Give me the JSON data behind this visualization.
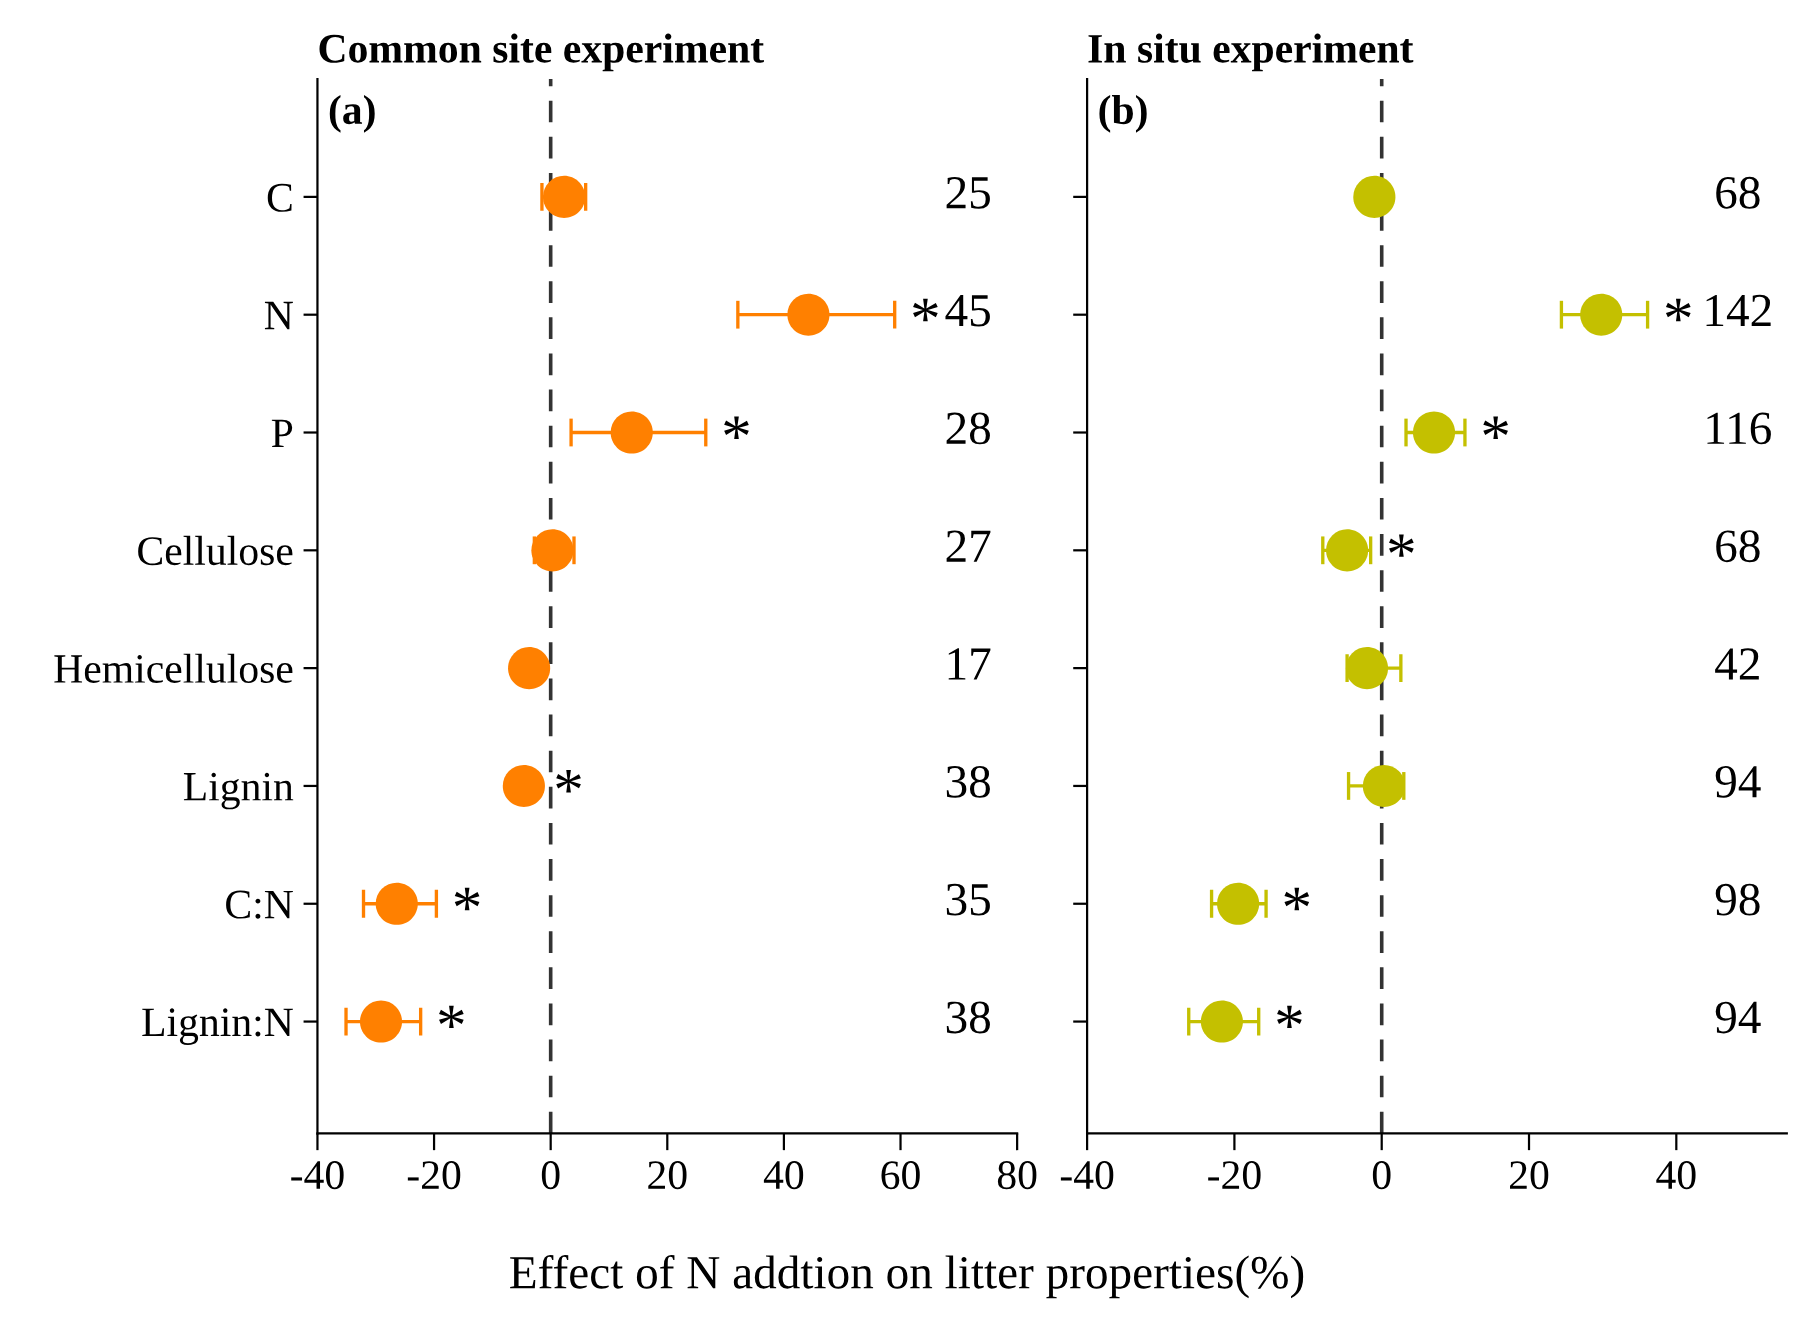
{
  "chart_data": [
    {
      "type": "scatter",
      "orientation": "horizontal",
      "title": "Common site experiment",
      "xlabel": "Effect of N addtion on litter properties(%)",
      "categories": [
        "C",
        "N",
        "P",
        "Cellulose",
        "Hemicellulose",
        "Lignin",
        "C:N",
        "Lignin:N"
      ],
      "series": [
        {
          "color": "#ff8000",
          "values": [
            2.3,
            44.2,
            13.9,
            0.3,
            -3.7,
            -4.6,
            -26.4,
            -29.1
          ],
          "errors": [
            [
              -1.5,
              6.0
            ],
            [
              32.1,
              59.0
            ],
            [
              3.5,
              26.6
            ],
            [
              -2.8,
              4.0
            ],
            null,
            null,
            [
              -32.1,
              -19.6
            ],
            [
              -35.1,
              -22.3
            ]
          ],
          "value_labels": [
            null,
            "*",
            "*",
            null,
            null,
            "*",
            "*",
            "*"
          ]
        }
      ],
      "xlim": [
        -40,
        80
      ],
      "xticks": [
        -40,
        -20,
        0,
        20,
        40,
        60,
        80
      ],
      "marker": "circle",
      "grid": false,
      "legend": false,
      "ref_lines": [
        {
          "axis": "x",
          "value": 0,
          "color": "#333333",
          "line_style": "dashed"
        }
      ],
      "annotations": [
        "(a)",
        "25",
        "45",
        "28",
        "27",
        "17",
        "38",
        "35",
        "38"
      ]
    },
    {
      "type": "scatter",
      "orientation": "horizontal",
      "title": "In situ experiment",
      "categories": [
        null,
        null,
        null,
        null,
        null,
        null,
        null,
        null
      ],
      "series": [
        {
          "color": "#c4c000",
          "values": [
            -1.0,
            29.8,
            7.1,
            -4.7,
            -2.0,
            0.3,
            -19.5,
            -21.7
          ],
          "errors": [
            null,
            [
              24.4,
              36.1
            ],
            [
              3.3,
              11.3
            ],
            [
              -8.0,
              -1.5
            ],
            [
              -4.7,
              2.6
            ],
            [
              -4.5,
              3.0
            ],
            [
              -23.1,
              -15.7
            ],
            [
              -26.2,
              -16.7
            ]
          ],
          "value_labels": [
            null,
            "*",
            "*",
            "*",
            null,
            null,
            "*",
            "*"
          ]
        }
      ],
      "xlim": [
        -40,
        55
      ],
      "xticks": [
        -40,
        -20,
        0,
        20,
        40
      ],
      "marker": "circle",
      "grid": false,
      "legend": false,
      "tick_labels": "x",
      "ref_lines": [
        {
          "axis": "x",
          "value": 0,
          "color": "#333333",
          "line_style": "dashed"
        }
      ],
      "annotations": [
        "(b)",
        "68",
        "142",
        "116",
        "68",
        "42",
        "94",
        "98",
        "94"
      ]
    }
  ]
}
